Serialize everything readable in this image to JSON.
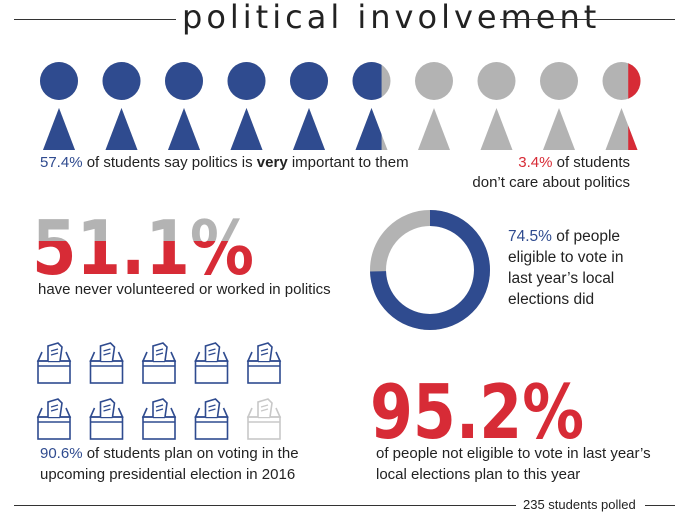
{
  "title": "political involvement",
  "colors": {
    "blue": "#2f4b8f",
    "red": "#d72b36",
    "gray": "#b3b3b3"
  },
  "people_stat": {
    "pct": "57.4%",
    "text_before": " of students say politics is ",
    "emphasis": "very",
    "text_after": " important to them",
    "value": 0.574,
    "figures": 10
  },
  "dont_care_stat": {
    "pct": "3.4%",
    "line1": " of students",
    "line2": "don’t care about politics",
    "value": 0.034
  },
  "volunteer_stat": {
    "big": "51.1%",
    "caption": "have never volunteered or worked in politics",
    "value": 0.511
  },
  "donut_stat": {
    "pct": "74.5%",
    "line1": " of people",
    "line2": "eligible to vote in",
    "line3": "last year’s local",
    "line4": "elections did",
    "value": 0.745
  },
  "ballot_stat": {
    "pct": "90.6%",
    "line1": " of students plan on voting in the",
    "line2": "upcoming presidential election in 2016",
    "value": 0.906,
    "boxes": 10,
    "icon": "ballot-box-icon"
  },
  "not_eligible_stat": {
    "big": "95.2%",
    "line1": "of people not eligible to vote in last year’s",
    "line2": "local elections plan to this year",
    "value": 0.952
  },
  "footer": "235 students polled"
}
